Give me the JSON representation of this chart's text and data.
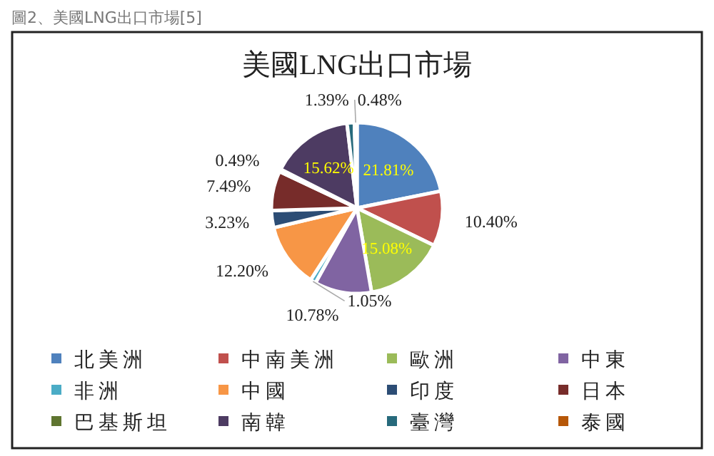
{
  "chart_data": {
    "type": "pie",
    "title": "美國LNG出口市場",
    "annotations": [
      "圖2、美國LNG出口市場[5]"
    ],
    "categories": [
      "北美洲",
      "中南美洲",
      "歐洲",
      "中東",
      "非洲",
      "中國",
      "印度",
      "日本",
      "巴基斯坦",
      "南韓",
      "臺灣",
      "泰國"
    ],
    "values": [
      21.81,
      10.4,
      15.08,
      10.78,
      1.05,
      12.2,
      3.23,
      7.49,
      0.49,
      15.62,
      1.39,
      0.48
    ],
    "colors": [
      "#4f81bd",
      "#c0504d",
      "#9bbb59",
      "#8064a2",
      "#4bacc6",
      "#f79646",
      "#2c4d75",
      "#772c2a",
      "#5f7530",
      "#4d3b62",
      "#276a7c",
      "#b65708"
    ],
    "value_labels": [
      "21.81%",
      "10.40%",
      "15.08%",
      "10.78%",
      "1.05%",
      "12.20%",
      "3.23%",
      "7.49%",
      "0.49%",
      "15.62%",
      "1.39%",
      "0.48%"
    ],
    "legend": "bottom"
  }
}
